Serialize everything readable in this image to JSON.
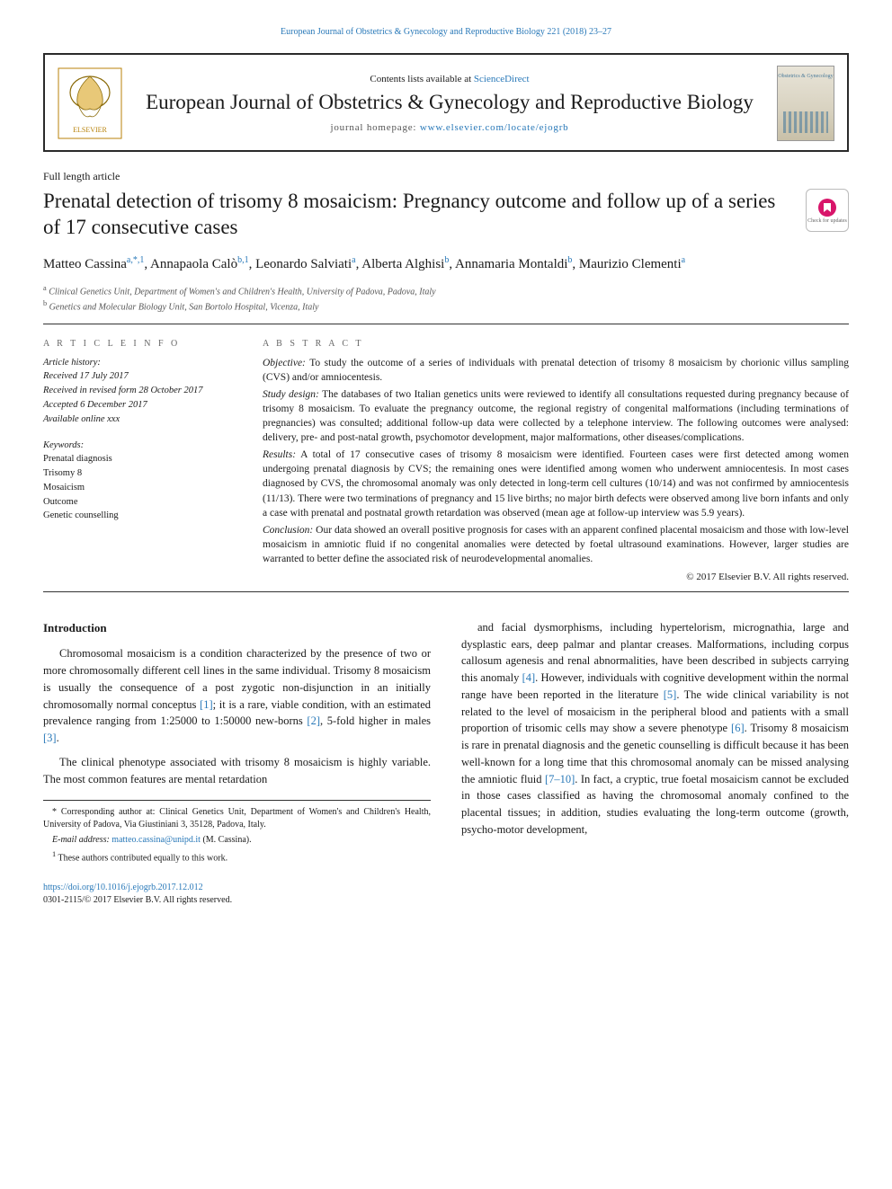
{
  "colors": {
    "link": "#2878b8",
    "text": "#1a1a1a",
    "muted": "#666666",
    "rule": "#333333"
  },
  "topLink": {
    "journal": "European Journal of Obstetrics & Gynecology and Reproductive Biology",
    "citation": "221 (2018) 23–27"
  },
  "banner": {
    "contentsPrefix": "Contents lists available at ",
    "contentsLink": "ScienceDirect",
    "journalName": "European Journal of Obstetrics & Gynecology and Reproductive Biology",
    "homepagePrefix": "journal homepage: ",
    "homepageUrl": "www.elsevier.com/locate/ejogrb",
    "coverTopText": "Obstetrics & Gynecology"
  },
  "articleType": "Full length article",
  "title": "Prenatal detection of trisomy 8 mosaicism: Pregnancy outcome and follow up of a series of 17 consecutive cases",
  "authors": [
    {
      "name": "Matteo Cassina",
      "marks": "a,*,1"
    },
    {
      "name": "Annapaola Calò",
      "marks": "b,1"
    },
    {
      "name": "Leonardo Salviati",
      "marks": "a"
    },
    {
      "name": "Alberta Alghisi",
      "marks": "b"
    },
    {
      "name": "Annamaria Montaldi",
      "marks": "b"
    },
    {
      "name": "Maurizio Clementi",
      "marks": "a"
    }
  ],
  "affiliations": [
    {
      "mark": "a",
      "text": "Clinical Genetics Unit, Department of Women's and Children's Health, University of Padova, Padova, Italy"
    },
    {
      "mark": "b",
      "text": "Genetics and Molecular Biology Unit, San Bortolo Hospital, Vicenza, Italy"
    }
  ],
  "info": {
    "header": "A R T I C L E   I N F O",
    "historyHead": "Article history:",
    "history": [
      "Received 17 July 2017",
      "Received in revised form 28 October 2017",
      "Accepted 6 December 2017",
      "Available online xxx"
    ],
    "keywordsHead": "Keywords:",
    "keywords": [
      "Prenatal diagnosis",
      "Trisomy 8",
      "Mosaicism",
      "Outcome",
      "Genetic counselling"
    ]
  },
  "abstract": {
    "header": "A B S T R A C T",
    "sections": [
      {
        "label": "Objective:",
        "text": "To study the outcome of a series of individuals with prenatal detection of trisomy 8 mosaicism by chorionic villus sampling (CVS) and/or amniocentesis."
      },
      {
        "label": "Study design:",
        "text": "The databases of two Italian genetics units were reviewed to identify all consultations requested during pregnancy because of trisomy 8 mosaicism. To evaluate the pregnancy outcome, the regional registry of congenital malformations (including terminations of pregnancies) was consulted; additional follow-up data were collected by a telephone interview. The following outcomes were analysed: delivery, pre- and post-natal growth, psychomotor development, major malformations, other diseases/complications."
      },
      {
        "label": "Results:",
        "text": "A total of 17 consecutive cases of trisomy 8 mosaicism were identified. Fourteen cases were first detected among women undergoing prenatal diagnosis by CVS; the remaining ones were identified among women who underwent amniocentesis. In most cases diagnosed by CVS, the chromosomal anomaly was only detected in long-term cell cultures (10/14) and was not confirmed by amniocentesis (11/13). There were two terminations of pregnancy and 15 live births; no major birth defects were observed among live born infants and only a case with prenatal and postnatal growth retardation was observed (mean age at follow-up interview was 5.9 years)."
      },
      {
        "label": "Conclusion:",
        "text": "Our data showed an overall positive prognosis for cases with an apparent confined placental mosaicism and those with low-level mosaicism in amniotic fluid if no congenital anomalies were detected by foetal ultrasound examinations. However, larger studies are warranted to better define the associated risk of neurodevelopmental anomalies."
      }
    ],
    "copyright": "© 2017 Elsevier B.V. All rights reserved."
  },
  "intro": {
    "heading": "Introduction",
    "left": [
      "Chromosomal mosaicism is a condition characterized by the presence of two or more chromosomally different cell lines in the same individual. Trisomy 8 mosaicism is usually the consequence of a post zygotic non-disjunction in an initially chromosomally normal conceptus [1]; it is a rare, viable condition, with an estimated prevalence ranging from 1:25000 to 1:50000 new-borns [2], 5-fold higher in males [3].",
      "The clinical phenotype associated with trisomy 8 mosaicism is highly variable. The most common features are mental retardation"
    ],
    "right": [
      "and facial dysmorphisms, including hypertelorism, micrognathia, large and dysplastic ears, deep palmar and plantar creases. Malformations, including corpus callosum agenesis and renal abnormalities, have been described in subjects carrying this anomaly [4]. However, individuals with cognitive development within the normal range have been reported in the literature [5]. The wide clinical variability is not related to the level of mosaicism in the peripheral blood and patients with a small proportion of trisomic cells may show a severe phenotype [6]. Trisomy 8 mosaicism is rare in prenatal diagnosis and the genetic counselling is difficult because it has been well-known for a long time that this chromosomal anomaly can be missed analysing the amniotic fluid [7–10]. In fact, a cryptic, true foetal mosaicism cannot be excluded in those cases classified as having the chromosomal anomaly confined to the placental tissues; in addition, studies evaluating the long-term outcome (growth, psycho-motor development,"
    ]
  },
  "footnotes": {
    "corresponding": "* Corresponding author at: Clinical Genetics Unit, Department of Women's and Children's Health, University of Padova, Via Giustiniani 3, 35128, Padova, Italy.",
    "emailLabel": "E-mail address:",
    "email": "matteo.cassina@unipd.it",
    "emailSuffix": "(M. Cassina).",
    "contrib": "These authors contributed equally to this work.",
    "contribMark": "1"
  },
  "bottom": {
    "doi": "https://doi.org/10.1016/j.ejogrb.2017.12.012",
    "issn": "0301-2115/© 2017 Elsevier B.V. All rights reserved."
  },
  "checkUpdates": "Check for updates"
}
